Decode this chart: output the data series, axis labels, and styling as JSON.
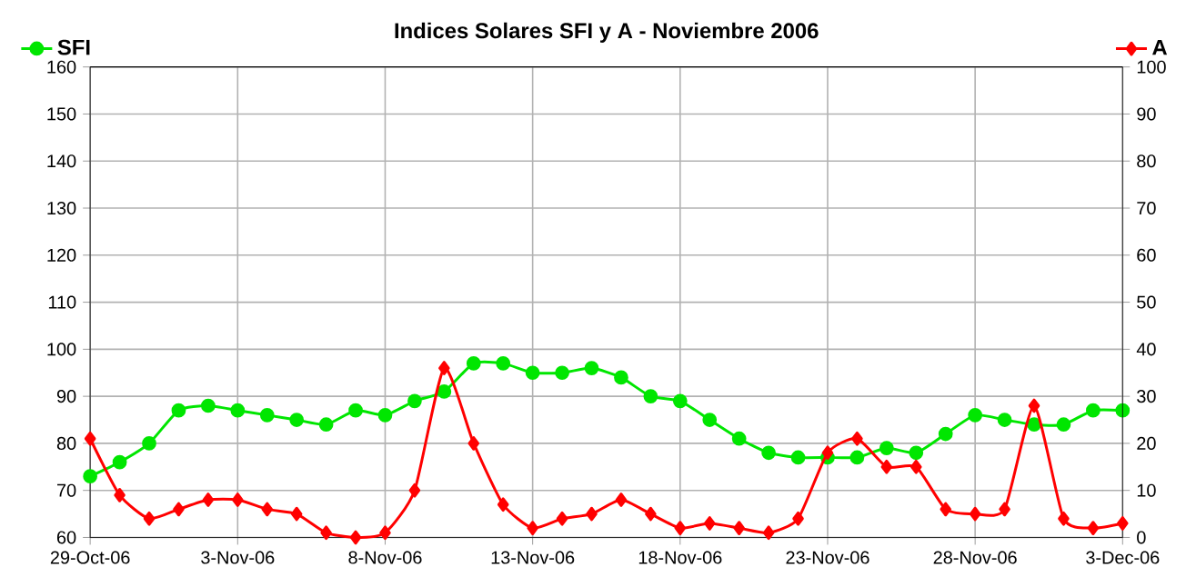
{
  "chart_data": {
    "type": "line",
    "title": "Indices Solares SFI y A - Noviembre 2006",
    "x": [
      "2006-10-29",
      "2006-10-30",
      "2006-10-31",
      "2006-11-01",
      "2006-11-02",
      "2006-11-03",
      "2006-11-04",
      "2006-11-05",
      "2006-11-06",
      "2006-11-07",
      "2006-11-08",
      "2006-11-09",
      "2006-11-10",
      "2006-11-11",
      "2006-11-12",
      "2006-11-13",
      "2006-11-14",
      "2006-11-15",
      "2006-11-16",
      "2006-11-17",
      "2006-11-18",
      "2006-11-19",
      "2006-11-20",
      "2006-11-21",
      "2006-11-22",
      "2006-11-23",
      "2006-11-24",
      "2006-11-25",
      "2006-11-26",
      "2006-11-27",
      "2006-11-28",
      "2006-11-29",
      "2006-11-30",
      "2006-12-01",
      "2006-12-02",
      "2006-12-03"
    ],
    "series": [
      {
        "name": "SFI",
        "color": "#00e600",
        "marker": "circle",
        "values": [
          73,
          76,
          80,
          87,
          88,
          87,
          86,
          85,
          84,
          87,
          86,
          89,
          91,
          97,
          97,
          95,
          95,
          96,
          94,
          90,
          89,
          85,
          81,
          78,
          77,
          77,
          77,
          79,
          78,
          82,
          86,
          85,
          84,
          84,
          87,
          87
        ]
      },
      {
        "name": "A",
        "color": "#ff0000",
        "marker": "diamond",
        "axis": "y2",
        "values": [
          21,
          9,
          4,
          6,
          8,
          8,
          6,
          5,
          1,
          0,
          1,
          10,
          36,
          20,
          7,
          2,
          4,
          5,
          8,
          5,
          2,
          3,
          2,
          1,
          4,
          18,
          21,
          15,
          15,
          6,
          5,
          6,
          28,
          4,
          2,
          3
        ]
      }
    ],
    "xlim": [
      "2006-10-29",
      "2006-12-03"
    ],
    "xticks": [
      {
        "value": "2006-10-29",
        "label": "29-Oct-06"
      },
      {
        "value": "2006-11-03",
        "label": "3-Nov-06"
      },
      {
        "value": "2006-11-08",
        "label": "8-Nov-06"
      },
      {
        "value": "2006-11-13",
        "label": "13-Nov-06"
      },
      {
        "value": "2006-11-18",
        "label": "18-Nov-06"
      },
      {
        "value": "2006-11-23",
        "label": "23-Nov-06"
      },
      {
        "value": "2006-11-28",
        "label": "28-Nov-06"
      },
      {
        "value": "2006-12-03",
        "label": "3-Dec-06"
      }
    ],
    "ylim": [
      60,
      160
    ],
    "yticks": [
      60,
      70,
      80,
      90,
      100,
      110,
      120,
      130,
      140,
      150,
      160
    ],
    "y2lim": [
      0,
      100
    ],
    "y2ticks": [
      0,
      10,
      20,
      30,
      40,
      50,
      60,
      70,
      80,
      90,
      100
    ],
    "grid": true,
    "legend": "top"
  }
}
